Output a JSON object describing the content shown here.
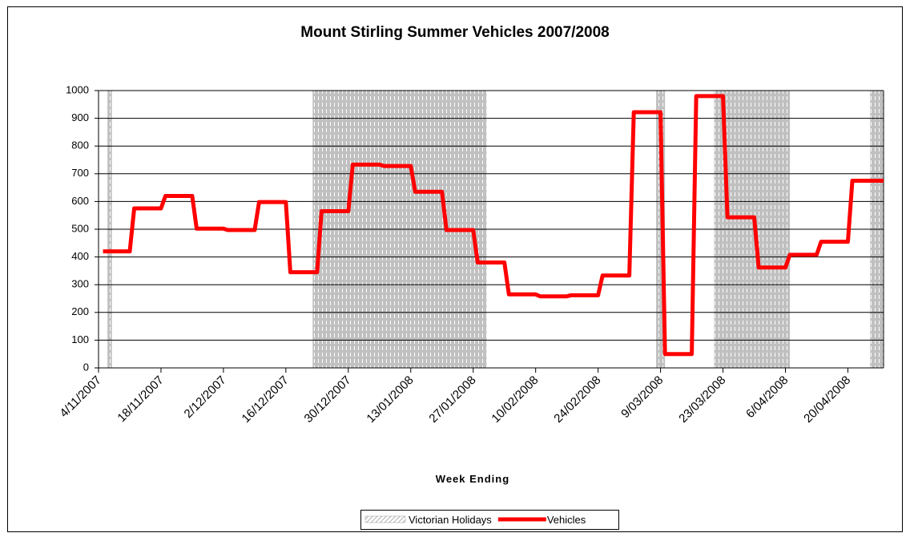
{
  "chart_data": {
    "type": "line",
    "title": "Mount Stirling Summer Vehicles 2007/2008",
    "x_label": "Week Ending",
    "xlim": [
      "4/11/2007",
      "28/04/2008"
    ],
    "xticks": [
      "4/11/2007",
      "18/11/2007",
      "2/12/2007",
      "16/12/2007",
      "30/12/2007",
      "13/01/2008",
      "27/01/2008",
      "10/02/2008",
      "24/02/2008",
      "9/03/2008",
      "23/03/2008",
      "6/04/2008",
      "20/04/2008"
    ],
    "ylim": [
      0,
      1000
    ],
    "yticks": [
      0,
      100,
      200,
      300,
      400,
      500,
      600,
      700,
      800,
      900,
      1000
    ],
    "grid": true,
    "legend": "bottom",
    "series": [
      {
        "name": "Victorian Holidays",
        "color": "#c0c0c0",
        "ranges": [
          [
            "6/11/2007",
            "6/11/2007"
          ],
          [
            "22/12/2007",
            "29/01/2008"
          ],
          [
            "8/03/2008",
            "9/03/2008"
          ],
          [
            "21/03/2008",
            "6/04/2008"
          ],
          [
            "25/04/2008",
            "27/04/2008"
          ]
        ]
      },
      {
        "name": "Vehicles",
        "color": "#ff0000",
        "x": [
          "5/11/2007",
          "11/11/2007",
          "12/11/2007",
          "18/11/2007",
          "19/11/2007",
          "25/11/2007",
          "26/11/2007",
          "2/12/2007",
          "3/12/2007",
          "9/12/2007",
          "10/12/2007",
          "16/12/2007",
          "17/12/2007",
          "23/12/2007",
          "24/12/2007",
          "30/12/2007",
          "31/12/2007",
          "6/01/2008",
          "7/01/2008",
          "13/01/2008",
          "14/01/2008",
          "20/01/2008",
          "21/01/2008",
          "27/01/2008",
          "28/01/2008",
          "3/02/2008",
          "4/02/2008",
          "10/02/2008",
          "11/02/2008",
          "17/02/2008",
          "18/02/2008",
          "24/02/2008",
          "25/02/2008",
          "2/03/2008",
          "3/03/2008",
          "9/03/2008",
          "10/03/2008",
          "16/03/2008",
          "17/03/2008",
          "23/03/2008",
          "24/03/2008",
          "30/03/2008",
          "31/03/2008",
          "6/04/2008",
          "7/04/2008",
          "13/04/2008",
          "14/04/2008",
          "20/04/2008",
          "21/04/2008",
          "28/04/2008"
        ],
        "values": [
          420,
          420,
          575,
          575,
          620,
          620,
          502,
          502,
          497,
          497,
          598,
          598,
          345,
          345,
          565,
          565,
          733,
          733,
          728,
          728,
          635,
          635,
          497,
          497,
          380,
          380,
          265,
          265,
          258,
          258,
          262,
          262,
          333,
          333,
          922,
          922,
          50,
          50,
          980,
          980,
          543,
          543,
          362,
          362,
          408,
          408,
          455,
          455,
          675,
          675
        ]
      }
    ]
  }
}
